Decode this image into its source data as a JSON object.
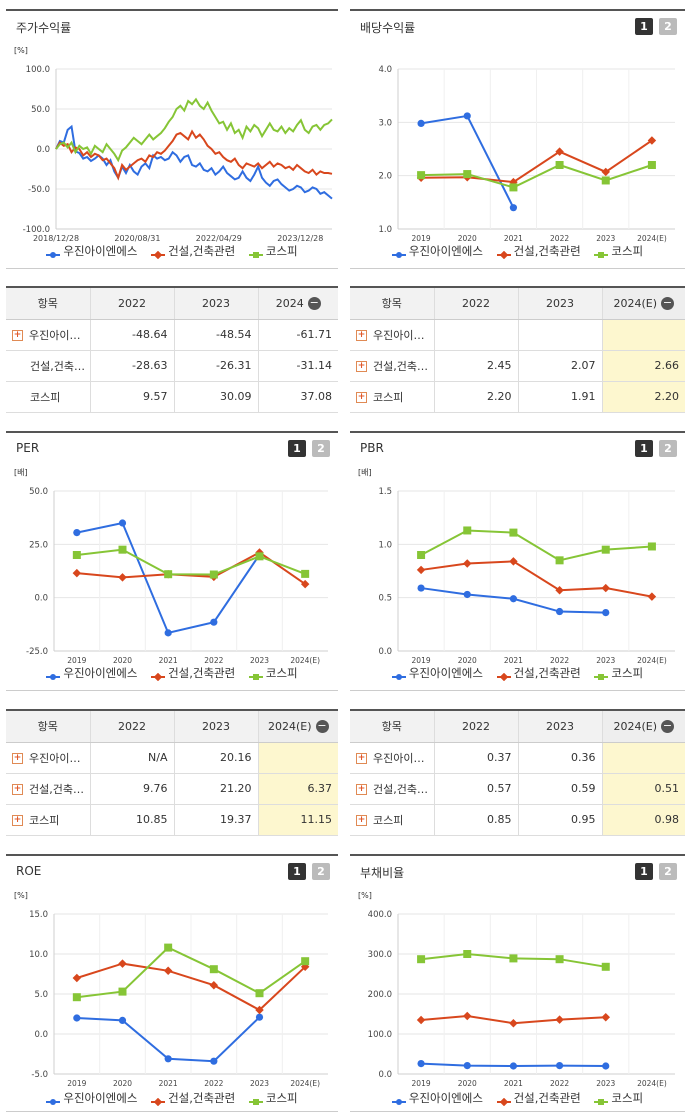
{
  "colors": {
    "company": "#2f6de0",
    "sector": "#d8471d",
    "kospi": "#86c536"
  },
  "legend": [
    "우진아이엔에스",
    "건설,건축관련",
    "코스피"
  ],
  "panels": {
    "stock_return": {
      "title": "주가수익률",
      "unit": "[%]"
    },
    "dividend": {
      "title": "배당수익률",
      "unit": "",
      "btn1": "1",
      "btn2": "2"
    },
    "per": {
      "title": "PER",
      "unit": "[배]",
      "btn1": "1",
      "btn2": "2"
    },
    "pbr": {
      "title": "PBR",
      "unit": "[배]",
      "btn1": "1",
      "btn2": "2"
    },
    "roe": {
      "title": "ROE",
      "unit": "[%]",
      "btn1": "1",
      "btn2": "2"
    },
    "debt": {
      "title": "부채비율",
      "unit": "[%]",
      "btn1": "1",
      "btn2": "2"
    }
  },
  "tables": {
    "stock_return": {
      "headers": [
        "항목",
        "2022",
        "2023",
        "2024"
      ],
      "rows": [
        {
          "name": "우진아이…",
          "plus": true,
          "values": [
            "-48.64",
            "-48.54",
            "-61.71"
          ]
        },
        {
          "name": "건설,건축…",
          "plus": false,
          "values": [
            "-28.63",
            "-26.31",
            "-31.14"
          ]
        },
        {
          "name": "코스피",
          "plus": false,
          "values": [
            "9.57",
            "30.09",
            "37.08"
          ]
        }
      ]
    },
    "dividend": {
      "headers": [
        "항목",
        "2022",
        "2023",
        "2024(E)"
      ],
      "rows": [
        {
          "name": "우진아이…",
          "plus": true,
          "values": [
            "",
            "",
            ""
          ]
        },
        {
          "name": "건설,건축…",
          "plus": true,
          "values": [
            "2.45",
            "2.07",
            "2.66"
          ]
        },
        {
          "name": "코스피",
          "plus": true,
          "values": [
            "2.20",
            "1.91",
            "2.20"
          ]
        }
      ]
    },
    "per": {
      "headers": [
        "항목",
        "2022",
        "2023",
        "2024(E)"
      ],
      "rows": [
        {
          "name": "우진아이…",
          "plus": true,
          "values": [
            "N/A",
            "20.16",
            ""
          ]
        },
        {
          "name": "건설,건축…",
          "plus": true,
          "values": [
            "9.76",
            "21.20",
            "6.37"
          ]
        },
        {
          "name": "코스피",
          "plus": true,
          "values": [
            "10.85",
            "19.37",
            "11.15"
          ]
        }
      ]
    },
    "pbr": {
      "headers": [
        "항목",
        "2022",
        "2023",
        "2024(E)"
      ],
      "rows": [
        {
          "name": "우진아이…",
          "plus": true,
          "values": [
            "0.37",
            "0.36",
            ""
          ]
        },
        {
          "name": "건설,건축…",
          "plus": true,
          "values": [
            "0.57",
            "0.59",
            "0.51"
          ]
        },
        {
          "name": "코스피",
          "plus": true,
          "values": [
            "0.85",
            "0.95",
            "0.98"
          ]
        }
      ]
    }
  },
  "chart_data": [
    {
      "id": "stock_return",
      "type": "line",
      "title": "주가수익률",
      "ylabel": "[%]",
      "ylim": [
        -100,
        100
      ],
      "yticks": [
        "100.0",
        "50.0",
        "0.0",
        "-50.0",
        "-100.0"
      ],
      "xticks": [
        "2018/12/28",
        "2020/08/31",
        "2022/04/29",
        "2023/12/28"
      ],
      "x_range": [
        "2018/12/28",
        "2024/06/28"
      ],
      "series": [
        {
          "name": "우진아이엔에스",
          "key": "company",
          "values": [
            0,
            10,
            8,
            24,
            28,
            -3,
            -5,
            -12,
            -10,
            -15,
            -12,
            -8,
            -12,
            -20,
            -14,
            -28,
            -36,
            -22,
            -30,
            -20,
            -28,
            -32,
            -22,
            -18,
            -24,
            -8,
            -12,
            -10,
            -14,
            -12,
            -4,
            -8,
            -16,
            -10,
            -8,
            -20,
            -22,
            -18,
            -26,
            -28,
            -24,
            -32,
            -28,
            -22,
            -30,
            -34,
            -38,
            -36,
            -28,
            -36,
            -40,
            -32,
            -22,
            -36,
            -42,
            -46,
            -40,
            -38,
            -44,
            -48,
            -52,
            -50,
            -46,
            -48,
            -54,
            -52,
            -48,
            -50,
            -56,
            -54,
            -58,
            -62
          ]
        },
        {
          "name": "건설,건축관련",
          "key": "sector",
          "values": [
            0,
            8,
            4,
            6,
            -4,
            2,
            0,
            -8,
            -4,
            -10,
            -6,
            -8,
            -14,
            -12,
            -18,
            -24,
            -36,
            -20,
            -26,
            -22,
            -18,
            -14,
            -12,
            -16,
            -8,
            -10,
            -4,
            -6,
            -2,
            4,
            10,
            18,
            20,
            16,
            12,
            22,
            14,
            18,
            12,
            4,
            0,
            -6,
            -4,
            -10,
            -14,
            -16,
            -12,
            -20,
            -24,
            -18,
            -20,
            -22,
            -18,
            -24,
            -20,
            -16,
            -22,
            -18,
            -20,
            -24,
            -22,
            -26,
            -20,
            -24,
            -28,
            -30,
            -26,
            -32,
            -28,
            -30,
            -30,
            -31
          ]
        },
        {
          "name": "코스피",
          "key": "kospi",
          "values": [
            0,
            6,
            8,
            2,
            8,
            -4,
            4,
            0,
            2,
            -6,
            4,
            0,
            -4,
            6,
            0,
            -6,
            -14,
            -2,
            2,
            8,
            14,
            10,
            6,
            12,
            18,
            12,
            16,
            20,
            26,
            34,
            40,
            50,
            54,
            48,
            60,
            56,
            62,
            54,
            50,
            58,
            48,
            40,
            32,
            34,
            24,
            32,
            20,
            24,
            14,
            28,
            22,
            30,
            26,
            16,
            24,
            32,
            24,
            22,
            28,
            20,
            26,
            22,
            30,
            36,
            24,
            20,
            28,
            30,
            24,
            30,
            32,
            37
          ]
        }
      ]
    },
    {
      "id": "dividend",
      "type": "line",
      "title": "배당수익률",
      "ylim": [
        1.0,
        4.0
      ],
      "yticks": [
        "4.0",
        "3.0",
        "2.0",
        "1.0"
      ],
      "categories": [
        "2019",
        "2020",
        "2021",
        "2022",
        "2023",
        "2024(E)"
      ],
      "series": [
        {
          "name": "우진아이엔에스",
          "key": "company",
          "values": [
            2.98,
            3.12,
            1.4,
            null,
            null,
            null
          ]
        },
        {
          "name": "건설,건축관련",
          "key": "sector",
          "values": [
            1.96,
            1.97,
            1.88,
            2.45,
            2.07,
            2.66
          ]
        },
        {
          "name": "코스피",
          "key": "kospi",
          "values": [
            2.01,
            2.03,
            1.78,
            2.2,
            1.91,
            2.2
          ]
        }
      ]
    },
    {
      "id": "per",
      "type": "line",
      "title": "PER",
      "ylabel": "[배]",
      "ylim": [
        -25,
        50
      ],
      "yticks": [
        "50.0",
        "25.0",
        "0.0",
        "-25.0"
      ],
      "categories": [
        "2019",
        "2020",
        "2021",
        "2022",
        "2023",
        "2024(E)"
      ],
      "series": [
        {
          "name": "우진아이엔에스",
          "key": "company",
          "values": [
            30.5,
            35.0,
            -16.5,
            -11.5,
            20.16,
            null
          ]
        },
        {
          "name": "건설,건축관련",
          "key": "sector",
          "values": [
            11.5,
            9.5,
            11.0,
            9.76,
            21.2,
            6.37
          ]
        },
        {
          "name": "코스피",
          "key": "kospi",
          "values": [
            20.0,
            22.5,
            11.0,
            10.85,
            19.37,
            11.15
          ]
        }
      ]
    },
    {
      "id": "pbr",
      "type": "line",
      "title": "PBR",
      "ylabel": "[배]",
      "ylim": [
        0.0,
        1.5
      ],
      "yticks": [
        "1.5",
        "1.0",
        "0.5",
        "0.0"
      ],
      "categories": [
        "2019",
        "2020",
        "2021",
        "2022",
        "2023",
        "2024(E)"
      ],
      "series": [
        {
          "name": "우진아이엔에스",
          "key": "company",
          "values": [
            0.59,
            0.53,
            0.49,
            0.37,
            0.36,
            null
          ]
        },
        {
          "name": "건설,건축관련",
          "key": "sector",
          "values": [
            0.76,
            0.82,
            0.84,
            0.57,
            0.59,
            0.51
          ]
        },
        {
          "name": "코스피",
          "key": "kospi",
          "values": [
            0.9,
            1.13,
            1.11,
            0.85,
            0.95,
            0.98
          ]
        }
      ]
    },
    {
      "id": "roe",
      "type": "line",
      "title": "ROE",
      "ylabel": "[%]",
      "ylim": [
        -5.0,
        15.0
      ],
      "yticks": [
        "15.0",
        "10.0",
        "5.0",
        "0.0",
        "-5.0"
      ],
      "categories": [
        "2019",
        "2020",
        "2021",
        "2022",
        "2023",
        "2024(E)"
      ],
      "series": [
        {
          "name": "우진아이엔에스",
          "key": "company",
          "values": [
            2.0,
            1.7,
            -3.1,
            -3.4,
            2.1,
            null
          ]
        },
        {
          "name": "건설,건축관련",
          "key": "sector",
          "values": [
            7.0,
            8.8,
            7.9,
            6.1,
            3.0,
            8.4
          ]
        },
        {
          "name": "코스피",
          "key": "kospi",
          "values": [
            4.6,
            5.3,
            10.8,
            8.1,
            5.1,
            9.1
          ]
        }
      ]
    },
    {
      "id": "debt",
      "type": "line",
      "title": "부채비율",
      "ylabel": "[%]",
      "ylim": [
        0,
        400
      ],
      "yticks": [
        "400.0",
        "300.0",
        "200.0",
        "100.0",
        "0.0"
      ],
      "categories": [
        "2019",
        "2020",
        "2021",
        "2022",
        "2023",
        "2024(E)"
      ],
      "series": [
        {
          "name": "우진아이엔에스",
          "key": "company",
          "values": [
            26,
            21,
            20,
            21,
            20,
            null
          ]
        },
        {
          "name": "건설,건축관련",
          "key": "sector",
          "values": [
            135,
            145,
            127,
            136,
            142,
            null
          ]
        },
        {
          "name": "코스피",
          "key": "kospi",
          "values": [
            287,
            300,
            289,
            287,
            268,
            null
          ]
        }
      ]
    }
  ]
}
